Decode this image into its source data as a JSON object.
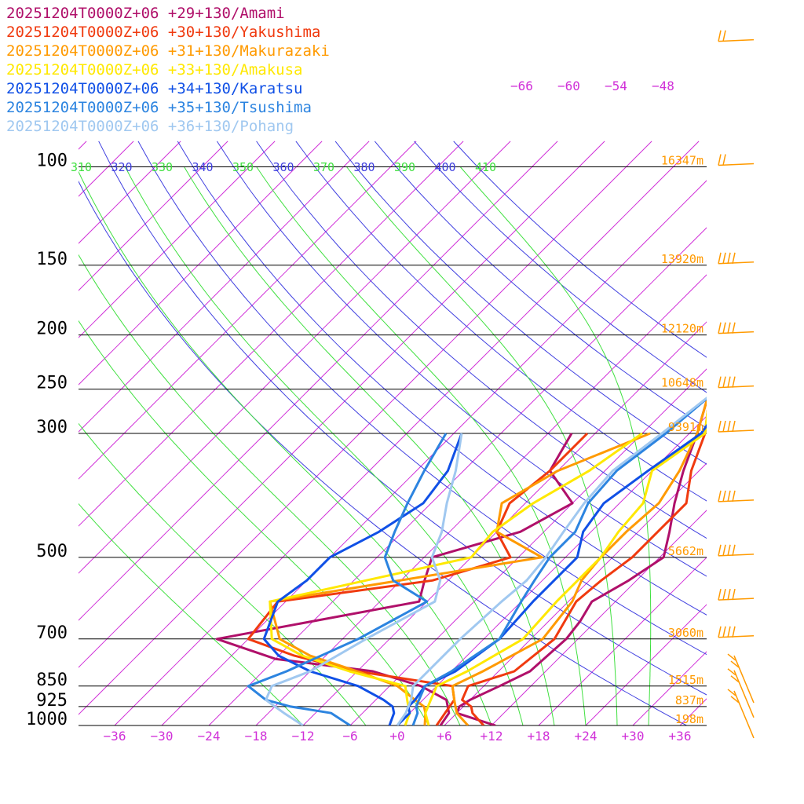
{
  "chart_data": {
    "type": "line",
    "title": "",
    "xlabel": "",
    "ylabel": "",
    "legend_position": "top-left",
    "grid": true,
    "x_ticks": [
      "−36",
      "−30",
      "−24",
      "−18",
      "−12",
      "−6",
      "+0",
      "+6",
      "+12",
      "+18",
      "+24",
      "+30",
      "+36"
    ],
    "pressure_ticks": [
      "100",
      "150",
      "200",
      "250",
      "300",
      "500",
      "700",
      "850",
      "925",
      "1000"
    ],
    "height_labels": [
      {
        "p": 100,
        "label": "16347m"
      },
      {
        "p": 150,
        "label": "13920m"
      },
      {
        "p": 200,
        "label": "12120m"
      },
      {
        "p": 250,
        "label": "10648m"
      },
      {
        "p": 300,
        "label": "9391m"
      },
      {
        "p": 500,
        "label": "5662m"
      },
      {
        "p": 700,
        "label": "3060m"
      },
      {
        "p": 850,
        "label": "1515m"
      },
      {
        "p": 925,
        "label": "837m"
      },
      {
        "p": 1000,
        "label": "198m"
      }
    ],
    "theta_labels": [
      "310",
      "320",
      "330",
      "340",
      "350",
      "360",
      "370",
      "380",
      "390",
      "400",
      "410"
    ],
    "isotherm_top_labels": [
      "−66",
      "−60",
      "−54",
      "−48"
    ],
    "series": [
      {
        "name": "20251204T0000Z+06 +29+130/Amami",
        "color": "#b0106a",
        "temperature": [
          [
            1000,
            12.5
          ],
          [
            950,
            6
          ],
          [
            925,
            5.5
          ],
          [
            900,
            6
          ],
          [
            850,
            8
          ],
          [
            800,
            10
          ],
          [
            700,
            10.5
          ],
          [
            650,
            10
          ],
          [
            600,
            9
          ],
          [
            550,
            11
          ],
          [
            500,
            12.5
          ],
          [
            450,
            10
          ],
          [
            400,
            7
          ],
          [
            350,
            4
          ],
          [
            300,
            1
          ],
          [
            250,
            -3
          ],
          [
            200,
            -8
          ],
          [
            180,
            -11.5
          ],
          [
            160,
            -12
          ],
          [
            150,
            -13
          ],
          [
            140,
            -14.5
          ],
          [
            120,
            -13
          ],
          [
            100,
            -12
          ],
          [
            70,
            -9
          ],
          [
            50,
            2
          ],
          [
            40,
            18
          ],
          [
            30,
            34
          ]
        ],
        "dewpoint": [
          [
            1000,
            5.5
          ],
          [
            950,
            5
          ],
          [
            900,
            3
          ],
          [
            850,
            -2
          ],
          [
            800,
            -10
          ],
          [
            760,
            -24
          ],
          [
            700,
            -34
          ],
          [
            600,
            -13
          ],
          [
            550,
            -15
          ],
          [
            500,
            -17
          ],
          [
            450,
            -9
          ],
          [
            400,
            -6
          ],
          [
            350,
            -13
          ],
          [
            300,
            -15
          ]
        ]
      },
      {
        "name": "20251204T0000Z+06 +30+130/Yakushima",
        "color": "#f03a0f",
        "temperature": [
          [
            1000,
            11
          ],
          [
            950,
            8
          ],
          [
            925,
            7
          ],
          [
            900,
            5
          ],
          [
            850,
            4
          ],
          [
            800,
            8
          ],
          [
            700,
            9
          ],
          [
            600,
            7
          ],
          [
            550,
            7.5
          ],
          [
            500,
            8.5
          ],
          [
            450,
            8.5
          ],
          [
            400,
            8.5
          ],
          [
            350,
            5
          ],
          [
            300,
            2
          ],
          [
            250,
            -3
          ],
          [
            200,
            -8
          ],
          [
            180,
            -10.5
          ],
          [
            160,
            -10
          ],
          [
            150,
            -11
          ],
          [
            140,
            -12.5
          ],
          [
            120,
            -11.5
          ],
          [
            100,
            -10
          ],
          [
            70,
            -5
          ],
          [
            50,
            5
          ],
          [
            40,
            22
          ],
          [
            30,
            38
          ]
        ],
        "dewpoint": [
          [
            1000,
            5
          ],
          [
            950,
            4.5
          ],
          [
            900,
            4
          ],
          [
            850,
            2
          ],
          [
            800,
            -12
          ],
          [
            750,
            -22
          ],
          [
            700,
            -30
          ],
          [
            600,
            -31
          ],
          [
            550,
            -14
          ],
          [
            500,
            -7
          ],
          [
            450,
            -12
          ],
          [
            400,
            -14
          ],
          [
            350,
            -13
          ],
          [
            300,
            -13
          ]
        ]
      },
      {
        "name": "20251204T0000Z+06 +31+130/Makurazaki",
        "color": "#ff9a00",
        "temperature": [
          [
            1000,
            9
          ],
          [
            950,
            6
          ],
          [
            925,
            5
          ],
          [
            900,
            4
          ],
          [
            850,
            2
          ],
          [
            800,
            4
          ],
          [
            700,
            7.5
          ],
          [
            600,
            6.5
          ],
          [
            550,
            5
          ],
          [
            500,
            4.5
          ],
          [
            450,
            4.5
          ],
          [
            400,
            5
          ],
          [
            350,
            3.5
          ],
          [
            300,
            1
          ],
          [
            250,
            -3
          ],
          [
            200,
            -8
          ],
          [
            180,
            -10.5
          ],
          [
            160,
            -10
          ],
          [
            150,
            -11
          ],
          [
            140,
            -11
          ],
          [
            120,
            -10
          ],
          [
            100,
            -8
          ],
          [
            70,
            -3
          ],
          [
            50,
            9
          ],
          [
            40,
            26
          ],
          [
            30,
            42
          ]
        ],
        "dewpoint": [
          [
            1000,
            3.5
          ],
          [
            950,
            2
          ],
          [
            925,
            1
          ],
          [
            900,
            -1
          ],
          [
            850,
            -5
          ],
          [
            800,
            -12
          ],
          [
            750,
            -20
          ],
          [
            700,
            -26
          ],
          [
            600,
            -32
          ],
          [
            500,
            -3
          ],
          [
            450,
            -12
          ],
          [
            400,
            -15
          ],
          [
            350,
            -12
          ],
          [
            300,
            -5
          ]
        ]
      },
      {
        "name": "20251204T0000Z+06 +33+130/Amakusa",
        "color": "#ffe800",
        "temperature": [
          [
            1000,
            4
          ],
          [
            950,
            2
          ],
          [
            925,
            1.5
          ],
          [
            900,
            1
          ],
          [
            850,
            0
          ],
          [
            800,
            2
          ],
          [
            700,
            5
          ],
          [
            600,
            4.5
          ],
          [
            550,
            4.5
          ],
          [
            500,
            4.5
          ],
          [
            450,
            3.5
          ],
          [
            400,
            3
          ],
          [
            350,
            0
          ],
          [
            300,
            2
          ],
          [
            250,
            -3
          ],
          [
            200,
            -5
          ],
          [
            180,
            -6
          ],
          [
            160,
            -7
          ],
          [
            150,
            -7
          ],
          [
            140,
            -6.5
          ],
          [
            120,
            -3
          ],
          [
            100,
            -1
          ],
          [
            70,
            3
          ],
          [
            50,
            14
          ],
          [
            40,
            30
          ],
          [
            30,
            46
          ]
        ],
        "dewpoint": [
          [
            1000,
            1
          ],
          [
            950,
            0
          ],
          [
            925,
            -1
          ],
          [
            900,
            -2
          ],
          [
            850,
            -4
          ],
          [
            800,
            -13
          ],
          [
            750,
            -21
          ],
          [
            700,
            -27
          ],
          [
            600,
            -32
          ],
          [
            500,
            -12
          ],
          [
            450,
            -12.5
          ],
          [
            400,
            -11
          ],
          [
            350,
            -8
          ],
          [
            300,
            -6
          ]
        ]
      },
      {
        "name": "20251204T0000Z+06 +34+130/Karatsu",
        "color": "#1050e6",
        "temperature": [
          [
            1000,
            0
          ],
          [
            950,
            0
          ],
          [
            925,
            -1
          ],
          [
            900,
            -1
          ],
          [
            850,
            -1.5
          ],
          [
            800,
            0.5
          ],
          [
            700,
            2
          ],
          [
            600,
            1.5
          ],
          [
            550,
            1.5
          ],
          [
            500,
            1.5
          ],
          [
            450,
            -1
          ],
          [
            400,
            -2
          ],
          [
            350,
            -0.5
          ],
          [
            300,
            1.5
          ],
          [
            250,
            0
          ],
          [
            200,
            -1.5
          ],
          [
            180,
            -2
          ],
          [
            160,
            -2.5
          ],
          [
            150,
            -3
          ],
          [
            140,
            -3.5
          ],
          [
            120,
            -1.5
          ],
          [
            100,
            2
          ],
          [
            70,
            9
          ],
          [
            50,
            22
          ],
          [
            40,
            36
          ],
          [
            30,
            50
          ]
        ],
        "dewpoint": [
          [
            1000,
            -1
          ],
          [
            950,
            -2
          ],
          [
            925,
            -3
          ],
          [
            900,
            -5
          ],
          [
            850,
            -10
          ],
          [
            800,
            -18
          ],
          [
            750,
            -24
          ],
          [
            700,
            -28
          ],
          [
            600,
            -31
          ],
          [
            550,
            -30
          ],
          [
            500,
            -30
          ],
          [
            450,
            -27
          ],
          [
            400,
            -25
          ],
          [
            350,
            -26
          ],
          [
            300,
            -29
          ]
        ]
      },
      {
        "name": "20251204T0000Z+06 +35+130/Tsushima",
        "color": "#2c84e0",
        "temperature": [
          [
            1000,
            2
          ],
          [
            950,
            1
          ],
          [
            925,
            0
          ],
          [
            900,
            -0.5
          ],
          [
            850,
            -1.5
          ],
          [
            800,
            0
          ],
          [
            700,
            2
          ],
          [
            600,
            0
          ],
          [
            550,
            -1
          ],
          [
            500,
            -2
          ],
          [
            450,
            -2
          ],
          [
            400,
            -4
          ],
          [
            350,
            -4.5
          ],
          [
            300,
            -3
          ],
          [
            250,
            -2
          ],
          [
            200,
            0
          ],
          [
            180,
            0.5
          ],
          [
            160,
            1
          ],
          [
            150,
            1.5
          ],
          [
            140,
            1
          ],
          [
            120,
            3
          ],
          [
            100,
            5
          ],
          [
            70,
            13
          ],
          [
            50,
            22
          ],
          [
            40,
            32
          ],
          [
            30,
            46
          ]
        ],
        "dewpoint": [
          [
            1000,
            -6
          ],
          [
            950,
            -10
          ],
          [
            925,
            -16
          ],
          [
            900,
            -20
          ],
          [
            850,
            -24
          ],
          [
            800,
            -21
          ],
          [
            700,
            -16
          ],
          [
            600,
            -12
          ],
          [
            550,
            -19
          ],
          [
            500,
            -23
          ],
          [
            450,
            -25
          ],
          [
            400,
            -27
          ],
          [
            350,
            -29
          ],
          [
            300,
            -31
          ]
        ]
      },
      {
        "name": "20251204T0000Z+06 +36+130/Pohang",
        "color": "#a0c8f0",
        "temperature": [
          [
            1000,
            0
          ],
          [
            950,
            -0.5
          ],
          [
            925,
            -1
          ],
          [
            900,
            -1.5
          ],
          [
            850,
            -3
          ],
          [
            800,
            -3
          ],
          [
            700,
            -3
          ],
          [
            600,
            -2.5
          ],
          [
            550,
            -2
          ],
          [
            500,
            -2.5
          ],
          [
            450,
            -3.5
          ],
          [
            400,
            -4.5
          ],
          [
            350,
            -5
          ],
          [
            300,
            -3.5
          ],
          [
            250,
            -2
          ],
          [
            200,
            -1.5
          ],
          [
            180,
            -0.5
          ],
          [
            160,
            0
          ],
          [
            150,
            1
          ],
          [
            140,
            2.5
          ],
          [
            120,
            6
          ],
          [
            100,
            8
          ],
          [
            70,
            15
          ],
          [
            50,
            20
          ],
          [
            40,
            28
          ],
          [
            30,
            41
          ]
        ],
        "dewpoint": [
          [
            1000,
            -12
          ],
          [
            950,
            -16
          ],
          [
            925,
            -18
          ],
          [
            900,
            -20
          ],
          [
            850,
            -21
          ],
          [
            800,
            -18
          ],
          [
            700,
            -15
          ],
          [
            600,
            -11
          ],
          [
            550,
            -13
          ],
          [
            500,
            -17
          ],
          [
            450,
            -19
          ],
          [
            400,
            -22
          ],
          [
            350,
            -25
          ],
          [
            300,
            -29
          ]
        ]
      }
    ]
  },
  "colors": {
    "dry_adiabat": "#4040e0",
    "moist_adiabat": "#40e040",
    "isotherm": "#d030d8",
    "isobar": "#000000",
    "height_label": "#ff9a00",
    "wind_barb": "#ff9a00"
  }
}
